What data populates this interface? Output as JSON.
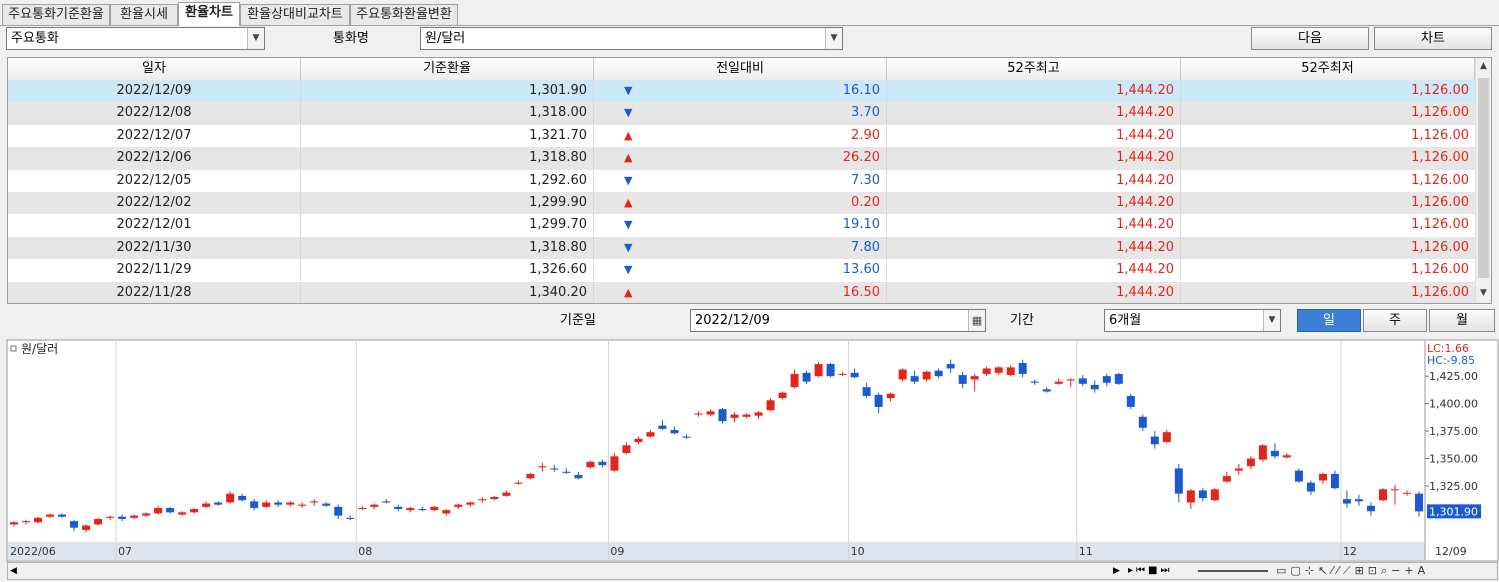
{
  "tabs": [
    "주요통화기준환율",
    "환율시세",
    "환율차트",
    "환율상대비교차트",
    "주요통화환율변환"
  ],
  "active_tab": 2,
  "toolbar": {
    "group": "주요통화",
    "currency_label": "통화명",
    "currency": "원/달러",
    "next_button": "다음",
    "chart_button": "차트"
  },
  "table": {
    "columns": [
      "일자",
      "기준환율",
      "전일대비",
      "52주최고",
      "52주최저"
    ],
    "selected_row": 0,
    "rows": [
      {
        "cells": [
          "2022/12/09",
          "1,301.90",
          "16.10",
          "1,444.20",
          "1,126.00"
        ],
        "direction": "down"
      },
      {
        "cells": [
          "2022/12/08",
          "1,318.00",
          "3.70",
          "1,444.20",
          "1,126.00"
        ],
        "direction": "down"
      },
      {
        "cells": [
          "2022/12/07",
          "1,321.70",
          "2.90",
          "1,444.20",
          "1,126.00"
        ],
        "direction": "up"
      },
      {
        "cells": [
          "2022/12/06",
          "1,318.80",
          "26.20",
          "1,444.20",
          "1,126.00"
        ],
        "direction": "up"
      },
      {
        "cells": [
          "2022/12/05",
          "1,292.60",
          "7.30",
          "1,444.20",
          "1,126.00"
        ],
        "direction": "down"
      },
      {
        "cells": [
          "2022/12/02",
          "1,299.90",
          "0.20",
          "1,444.20",
          "1,126.00"
        ],
        "direction": "up"
      },
      {
        "cells": [
          "2022/12/01",
          "1,299.70",
          "19.10",
          "1,444.20",
          "1,126.00"
        ],
        "direction": "down"
      },
      {
        "cells": [
          "2022/11/30",
          "1,318.80",
          "7.80",
          "1,444.20",
          "1,126.00"
        ],
        "direction": "down"
      },
      {
        "cells": [
          "2022/11/29",
          "1,326.60",
          "13.60",
          "1,444.20",
          "1,126.00"
        ],
        "direction": "down"
      },
      {
        "cells": [
          "2022/11/28",
          "1,340.20",
          "16.50",
          "1,444.20",
          "1,126.00"
        ],
        "direction": "up"
      }
    ]
  },
  "query": {
    "base_date_label": "기준일",
    "base_date": "2022/12/09",
    "period_label": "기간",
    "period": "6개월",
    "units": [
      "일",
      "주",
      "월"
    ],
    "active_unit": 0
  },
  "chart": {
    "type": "candlestick",
    "legend": "원/달러",
    "lc": "LC:1.66",
    "hc": "HC:-9.85",
    "up_color": "#e3261c",
    "down_color": "#1b5bcf",
    "ylim": [
      1274,
      1457
    ],
    "yticks": [
      {
        "value": 1425,
        "label": "1,425.00"
      },
      {
        "value": 1400,
        "label": "1,400.00"
      },
      {
        "value": 1375,
        "label": "1,375.00"
      },
      {
        "value": 1350,
        "label": "1,350.00"
      },
      {
        "value": 1325,
        "label": "1,325.00"
      }
    ],
    "last": {
      "value": 1301.9,
      "label": "1,301.90"
    },
    "xlabels": [
      {
        "label": "2022/06",
        "index": 0
      },
      {
        "label": "07",
        "index": 9
      },
      {
        "label": "08",
        "index": 29
      },
      {
        "label": "09",
        "index": 50
      },
      {
        "label": "10",
        "index": 70
      },
      {
        "label": "11",
        "index": 89
      },
      {
        "label": "12",
        "index": 111
      },
      {
        "label": "12/09",
        "index": 117
      }
    ],
    "candles": [
      [
        1290,
        1293,
        1288,
        1292
      ],
      [
        1292,
        1294,
        1290,
        1293
      ],
      [
        1292,
        1297,
        1291,
        1296
      ],
      [
        1297,
        1300,
        1296,
        1299
      ],
      [
        1299,
        1300,
        1296,
        1297
      ],
      [
        1293,
        1294,
        1284,
        1287
      ],
      [
        1285,
        1290,
        1283,
        1289
      ],
      [
        1290,
        1296,
        1289,
        1295
      ],
      [
        1296,
        1298,
        1294,
        1297
      ],
      [
        1297,
        1299,
        1293,
        1295
      ],
      [
        1296,
        1299,
        1295,
        1298
      ],
      [
        1298,
        1301,
        1297,
        1300
      ],
      [
        1300,
        1307,
        1299,
        1305
      ],
      [
        1305,
        1306,
        1300,
        1301
      ],
      [
        1299,
        1302,
        1298,
        1301
      ],
      [
        1301,
        1305,
        1300,
        1304
      ],
      [
        1306,
        1311,
        1305,
        1309
      ],
      [
        1310,
        1311,
        1307,
        1308
      ],
      [
        1310,
        1320,
        1309,
        1318
      ],
      [
        1316,
        1318,
        1311,
        1312
      ],
      [
        1311,
        1313,
        1303,
        1305
      ],
      [
        1306,
        1312,
        1305,
        1310
      ],
      [
        1310,
        1312,
        1306,
        1308
      ],
      [
        1308,
        1311,
        1306,
        1310
      ],
      [
        1307,
        1310,
        1305,
        1308
      ],
      [
        1310,
        1313,
        1307,
        1311
      ],
      [
        1309,
        1310,
        1306,
        1307
      ],
      [
        1306,
        1308,
        1295,
        1298
      ],
      [
        1296,
        1298,
        1294,
        1295
      ],
      [
        1305,
        1307,
        1303,
        1305
      ],
      [
        1306,
        1309,
        1304,
        1308
      ],
      [
        1311,
        1313,
        1309,
        1310
      ],
      [
        1306,
        1308,
        1302,
        1304
      ],
      [
        1303,
        1306,
        1301,
        1305
      ],
      [
        1304,
        1306,
        1302,
        1303
      ],
      [
        1303,
        1307,
        1302,
        1306
      ],
      [
        1300,
        1304,
        1298,
        1303
      ],
      [
        1306,
        1309,
        1304,
        1308
      ],
      [
        1308,
        1311,
        1306,
        1310
      ],
      [
        1312,
        1315,
        1310,
        1313
      ],
      [
        1313,
        1316,
        1312,
        1315
      ],
      [
        1316,
        1321,
        1315,
        1319
      ],
      [
        1327,
        1330,
        1326,
        1328
      ],
      [
        1332,
        1337,
        1331,
        1336
      ],
      [
        1342,
        1346,
        1338,
        1343
      ],
      [
        1341,
        1344,
        1338,
        1340
      ],
      [
        1338,
        1341,
        1336,
        1337
      ],
      [
        1335,
        1338,
        1331,
        1332
      ],
      [
        1342,
        1348,
        1341,
        1347
      ],
      [
        1347,
        1349,
        1342,
        1344
      ],
      [
        1339,
        1355,
        1338,
        1352
      ],
      [
        1355,
        1365,
        1354,
        1362
      ],
      [
        1365,
        1370,
        1363,
        1368
      ],
      [
        1370,
        1376,
        1369,
        1374
      ],
      [
        1380,
        1385,
        1376,
        1377
      ],
      [
        1376,
        1379,
        1372,
        1373
      ],
      [
        1370,
        1372,
        1368,
        1369
      ],
      [
        1390,
        1393,
        1388,
        1391
      ],
      [
        1390,
        1395,
        1389,
        1393
      ],
      [
        1395,
        1396,
        1382,
        1384
      ],
      [
        1387,
        1392,
        1383,
        1390
      ],
      [
        1388,
        1391,
        1387,
        1390
      ],
      [
        1389,
        1393,
        1386,
        1392
      ],
      [
        1394,
        1405,
        1393,
        1403
      ],
      [
        1405,
        1411,
        1404,
        1410
      ],
      [
        1415,
        1431,
        1414,
        1427
      ],
      [
        1428,
        1430,
        1418,
        1420
      ],
      [
        1425,
        1438,
        1424,
        1436
      ],
      [
        1436,
        1437,
        1424,
        1425
      ],
      [
        1427,
        1429,
        1425,
        1427
      ],
      [
        1428,
        1432,
        1423,
        1424
      ],
      [
        1415,
        1419,
        1405,
        1407
      ],
      [
        1408,
        1410,
        1391,
        1397
      ],
      [
        1405,
        1410,
        1402,
        1409
      ],
      [
        1422,
        1432,
        1420,
        1431
      ],
      [
        1425,
        1430,
        1418,
        1420
      ],
      [
        1422,
        1430,
        1420,
        1429
      ],
      [
        1430,
        1432,
        1423,
        1425
      ],
      [
        1436,
        1440,
        1428,
        1432
      ],
      [
        1426,
        1429,
        1414,
        1418
      ],
      [
        1422,
        1427,
        1411,
        1425
      ],
      [
        1427,
        1434,
        1425,
        1432
      ],
      [
        1428,
        1434,
        1426,
        1433
      ],
      [
        1426,
        1435,
        1425,
        1433
      ],
      [
        1437,
        1440,
        1424,
        1427
      ],
      [
        1420,
        1422,
        1417,
        1419
      ],
      [
        1413,
        1415,
        1410,
        1411
      ],
      [
        1418,
        1423,
        1417,
        1420
      ],
      [
        1421,
        1423,
        1415,
        1422
      ],
      [
        1423,
        1426,
        1416,
        1418
      ],
      [
        1417,
        1421,
        1410,
        1413
      ],
      [
        1425,
        1427,
        1416,
        1419
      ],
      [
        1427,
        1428,
        1417,
        1418
      ],
      [
        1407,
        1409,
        1395,
        1397
      ],
      [
        1388,
        1390,
        1375,
        1378
      ],
      [
        1370,
        1375,
        1359,
        1363
      ],
      [
        1365,
        1376,
        1364,
        1374
      ],
      [
        1341,
        1345,
        1310,
        1318
      ],
      [
        1310,
        1322,
        1304,
        1321
      ],
      [
        1321,
        1323,
        1311,
        1314
      ],
      [
        1312,
        1323,
        1311,
        1322
      ],
      [
        1329,
        1338,
        1328,
        1334
      ],
      [
        1339,
        1345,
        1335,
        1341
      ],
      [
        1343,
        1352,
        1340,
        1350
      ],
      [
        1349,
        1363,
        1347,
        1362
      ],
      [
        1357,
        1364,
        1350,
        1352
      ],
      [
        1351,
        1355,
        1350,
        1353
      ],
      [
        1339,
        1341,
        1328,
        1329
      ],
      [
        1328,
        1330,
        1317,
        1320
      ],
      [
        1330,
        1337,
        1327,
        1336
      ],
      [
        1336,
        1339,
        1322,
        1323
      ],
      [
        1313,
        1321,
        1305,
        1309
      ],
      [
        1313,
        1317,
        1307,
        1311
      ],
      [
        1307,
        1310,
        1298,
        1302
      ],
      [
        1312,
        1323,
        1311,
        1322
      ],
      [
        1322,
        1326,
        1308,
        1322
      ],
      [
        1318,
        1321,
        1316,
        1318.8
      ],
      [
        1318,
        1320,
        1297,
        1301.9
      ]
    ]
  }
}
